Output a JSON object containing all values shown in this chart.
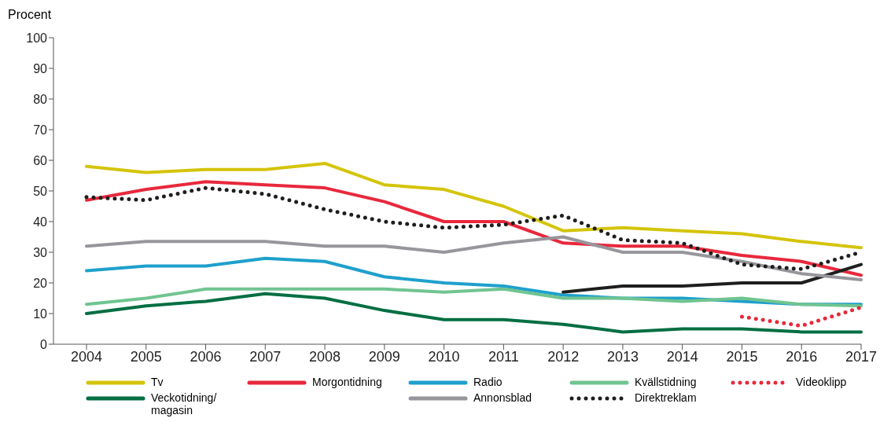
{
  "chart_data": {
    "type": "line",
    "ylabel": "Procent",
    "categories": [
      "2004",
      "2005",
      "2006",
      "2007",
      "2008",
      "2009",
      "2010",
      "2011",
      "2012",
      "2013",
      "2014",
      "2015",
      "2016",
      "2017"
    ],
    "ylim": [
      0,
      100
    ],
    "yticks": [
      0,
      10,
      20,
      30,
      40,
      50,
      60,
      70,
      80,
      90,
      100
    ],
    "grid": false,
    "legend": "bottom",
    "marker": "none",
    "series": [
      {
        "name": "Tv",
        "color": "#d4c40a",
        "line_style": "solid",
        "values": [
          58,
          56,
          57,
          57,
          59,
          52,
          50.5,
          45,
          37,
          38,
          37,
          36,
          33.5,
          31.5
        ]
      },
      {
        "name": "Morgontidning",
        "color": "#e8283c",
        "line_style": "solid",
        "values": [
          47,
          50.5,
          53,
          52,
          51,
          46.5,
          40,
          40,
          33,
          32,
          32,
          29,
          27,
          22.5
        ]
      },
      {
        "name": "Radio",
        "color": "#1ea0cc",
        "line_style": "solid",
        "values": [
          24,
          25.5,
          25.5,
          28,
          27,
          22,
          20,
          19,
          16,
          15,
          15,
          14,
          13,
          13
        ]
      },
      {
        "name": "Kvällstidning",
        "color": "#70c490",
        "line_style": "solid",
        "values": [
          13,
          15,
          18,
          18,
          18,
          18,
          17,
          18,
          15,
          15,
          14,
          15,
          13,
          12.5
        ]
      },
      {
        "name": "Videoklipp",
        "color": "#e8283c",
        "line_style": "dotted",
        "values": [
          null,
          null,
          null,
          null,
          null,
          null,
          null,
          null,
          null,
          null,
          null,
          9,
          6,
          12
        ]
      },
      {
        "name": "Veckotidning/ magasin",
        "color": "#006e42",
        "line_style": "solid",
        "values": [
          10,
          12.5,
          14,
          16.5,
          15,
          11,
          8,
          8,
          6.5,
          4,
          5,
          5,
          4,
          4
        ]
      },
      {
        "color": "#1e1e1e",
        "line_style": "solid",
        "values": [
          null,
          null,
          null,
          null,
          null,
          null,
          null,
          null,
          17,
          19,
          19,
          20,
          20,
          26
        ]
      },
      {
        "name": "Annonsblad",
        "color": "#96969c",
        "line_style": "solid",
        "values": [
          32,
          33.5,
          33.5,
          33.5,
          32,
          32,
          30,
          33,
          35,
          30,
          30,
          27,
          23,
          21
        ]
      },
      {
        "name": "Direktreklam",
        "color": "#1e1e1e",
        "line_style": "dotted",
        "values": [
          48,
          47,
          51,
          49,
          44,
          40,
          38,
          39,
          42,
          34,
          33,
          26,
          24.5,
          30
        ]
      }
    ]
  }
}
